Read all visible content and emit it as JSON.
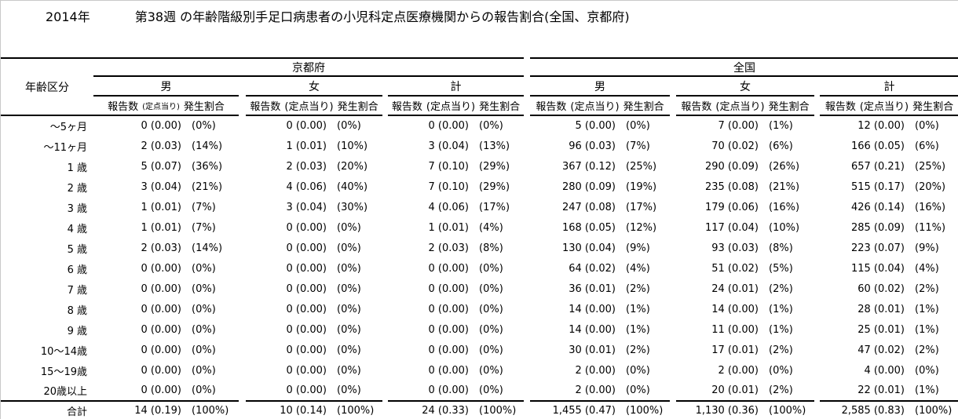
{
  "title": {
    "year": "2014年",
    "main": "第38週 の年齢階級別手足口病患者の小児科定点医療機関からの報告割合(全国、京都府)"
  },
  "table": {
    "age_header": "年齢区分",
    "regions": [
      {
        "id": "kyoto",
        "label": "京都府"
      },
      {
        "id": "zenkoku",
        "label": "全国"
      }
    ],
    "gender_labels": [
      "男",
      "女",
      "計"
    ],
    "measure_header": {
      "count": "報告数",
      "per_sentinel": "(定点当り)",
      "rate": "発生割合"
    },
    "rows": [
      {
        "age": "～5ヶ月",
        "cells": [
          "0 (0.00)",
          "(0%)",
          "0 (0.00)",
          "(0%)",
          "0 (0.00)",
          "(0%)",
          "5 (0.00)",
          "(0%)",
          "7 (0.00)",
          "(1%)",
          "12 (0.00)",
          "(0%)"
        ]
      },
      {
        "age": "～11ヶ月",
        "cells": [
          "2 (0.03)",
          "(14%)",
          "1 (0.01)",
          "(10%)",
          "3 (0.04)",
          "(13%)",
          "96 (0.03)",
          "(7%)",
          "70 (0.02)",
          "(6%)",
          "166 (0.05)",
          "(6%)"
        ]
      },
      {
        "age": "1 歳",
        "cells": [
          "5 (0.07)",
          "(36%)",
          "2 (0.03)",
          "(20%)",
          "7 (0.10)",
          "(29%)",
          "367 (0.12)",
          "(25%)",
          "290 (0.09)",
          "(26%)",
          "657 (0.21)",
          "(25%)"
        ]
      },
      {
        "age": "2 歳",
        "cells": [
          "3 (0.04)",
          "(21%)",
          "4 (0.06)",
          "(40%)",
          "7 (0.10)",
          "(29%)",
          "280 (0.09)",
          "(19%)",
          "235 (0.08)",
          "(21%)",
          "515 (0.17)",
          "(20%)"
        ]
      },
      {
        "age": "3 歳",
        "cells": [
          "1 (0.01)",
          "(7%)",
          "3 (0.04)",
          "(30%)",
          "4 (0.06)",
          "(17%)",
          "247 (0.08)",
          "(17%)",
          "179 (0.06)",
          "(16%)",
          "426 (0.14)",
          "(16%)"
        ]
      },
      {
        "age": "4 歳",
        "cells": [
          "1 (0.01)",
          "(7%)",
          "0 (0.00)",
          "(0%)",
          "1 (0.01)",
          "(4%)",
          "168 (0.05)",
          "(12%)",
          "117 (0.04)",
          "(10%)",
          "285 (0.09)",
          "(11%)"
        ]
      },
      {
        "age": "5 歳",
        "cells": [
          "2 (0.03)",
          "(14%)",
          "0 (0.00)",
          "(0%)",
          "2 (0.03)",
          "(8%)",
          "130 (0.04)",
          "(9%)",
          "93 (0.03)",
          "(8%)",
          "223 (0.07)",
          "(9%)"
        ]
      },
      {
        "age": "6 歳",
        "cells": [
          "0 (0.00)",
          "(0%)",
          "0 (0.00)",
          "(0%)",
          "0 (0.00)",
          "(0%)",
          "64 (0.02)",
          "(4%)",
          "51 (0.02)",
          "(5%)",
          "115 (0.04)",
          "(4%)"
        ]
      },
      {
        "age": "7 歳",
        "cells": [
          "0 (0.00)",
          "(0%)",
          "0 (0.00)",
          "(0%)",
          "0 (0.00)",
          "(0%)",
          "36 (0.01)",
          "(2%)",
          "24 (0.01)",
          "(2%)",
          "60 (0.02)",
          "(2%)"
        ]
      },
      {
        "age": "8 歳",
        "cells": [
          "0 (0.00)",
          "(0%)",
          "0 (0.00)",
          "(0%)",
          "0 (0.00)",
          "(0%)",
          "14 (0.00)",
          "(1%)",
          "14 (0.00)",
          "(1%)",
          "28 (0.01)",
          "(1%)"
        ]
      },
      {
        "age": "9 歳",
        "cells": [
          "0 (0.00)",
          "(0%)",
          "0 (0.00)",
          "(0%)",
          "0 (0.00)",
          "(0%)",
          "14 (0.00)",
          "(1%)",
          "11 (0.00)",
          "(1%)",
          "25 (0.01)",
          "(1%)"
        ]
      },
      {
        "age": "10～14歳",
        "cells": [
          "0 (0.00)",
          "(0%)",
          "0 (0.00)",
          "(0%)",
          "0 (0.00)",
          "(0%)",
          "30 (0.01)",
          "(2%)",
          "17 (0.01)",
          "(2%)",
          "47 (0.02)",
          "(2%)"
        ]
      },
      {
        "age": "15～19歳",
        "cells": [
          "0 (0.00)",
          "(0%)",
          "0 (0.00)",
          "(0%)",
          "0 (0.00)",
          "(0%)",
          "2 (0.00)",
          "(0%)",
          "2 (0.00)",
          "(0%)",
          "4 (0.00)",
          "(0%)"
        ]
      },
      {
        "age": "20歳以上",
        "cells": [
          "0 (0.00)",
          "(0%)",
          "0 (0.00)",
          "(0%)",
          "0 (0.00)",
          "(0%)",
          "2 (0.00)",
          "(0%)",
          "20 (0.01)",
          "(2%)",
          "22 (0.01)",
          "(1%)"
        ]
      }
    ],
    "total_row": {
      "age": "合計",
      "cells": [
        "14 (0.19)",
        "(100%)",
        "10 (0.14)",
        "(100%)",
        "24 (0.33)",
        "(100%)",
        "1,455 (0.47)",
        "(100%)",
        "1,130 (0.36)",
        "(100%)",
        "2,585 (0.83)",
        "(100%)"
      ]
    }
  }
}
